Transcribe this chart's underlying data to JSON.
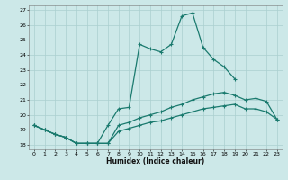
{
  "xlabel": "Humidex (Indice chaleur)",
  "bg_color": "#cce8e8",
  "grid_color": "#aacfcf",
  "line_color": "#1a7a6e",
  "xlim": [
    -0.5,
    23.5
  ],
  "ylim": [
    17.7,
    27.3
  ],
  "xticks": [
    0,
    1,
    2,
    3,
    4,
    5,
    6,
    7,
    8,
    9,
    10,
    11,
    12,
    13,
    14,
    15,
    16,
    17,
    18,
    19,
    20,
    21,
    22,
    23
  ],
  "yticks": [
    18,
    19,
    20,
    21,
    22,
    23,
    24,
    25,
    26,
    27
  ],
  "line1_y": [
    19.3,
    19.0,
    18.7,
    18.5,
    18.1,
    18.1,
    18.1,
    19.3,
    20.4,
    20.5,
    24.7,
    24.4,
    24.2,
    24.7,
    26.6,
    26.8,
    24.5,
    23.7,
    23.2,
    22.4,
    null,
    null,
    null,
    null
  ],
  "line2_y": [
    19.3,
    19.0,
    18.7,
    18.5,
    18.1,
    18.1,
    18.1,
    18.1,
    19.3,
    19.5,
    19.8,
    20.0,
    20.2,
    20.5,
    20.7,
    21.0,
    21.2,
    21.4,
    21.5,
    21.3,
    21.0,
    21.1,
    20.9,
    19.7
  ],
  "line3_y": [
    19.3,
    19.0,
    18.7,
    18.5,
    18.1,
    18.1,
    18.1,
    18.1,
    18.9,
    19.1,
    19.3,
    19.5,
    19.6,
    19.8,
    20.0,
    20.2,
    20.4,
    20.5,
    20.6,
    20.7,
    20.4,
    20.4,
    20.2,
    19.7
  ]
}
